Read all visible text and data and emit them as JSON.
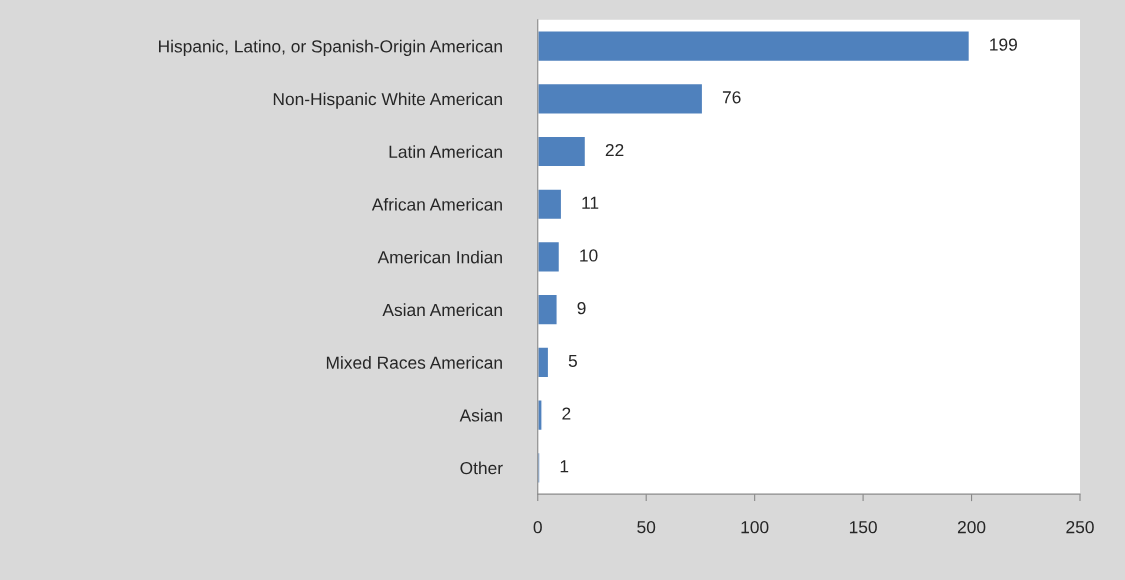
{
  "chart_data": {
    "type": "bar",
    "orientation": "horizontal",
    "categories": [
      "Hispanic, Latino, or Spanish-Origin American",
      "Non-Hispanic White American",
      "Latin American",
      "African American",
      "American Indian",
      "Asian American",
      "Mixed Races American",
      "Asian",
      "Other"
    ],
    "values": [
      199,
      76,
      22,
      11,
      10,
      9,
      5,
      2,
      1
    ],
    "color": "#4f81bd",
    "data_labels": true,
    "grid": false,
    "legend": false,
    "xlim": [
      0,
      250
    ],
    "xticks": [
      0,
      50,
      100,
      150,
      200,
      250
    ]
  }
}
